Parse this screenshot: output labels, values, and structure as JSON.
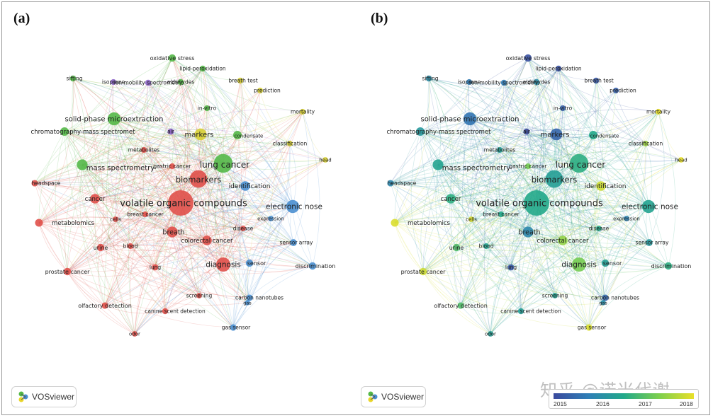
{
  "panel_a_label": "(a)",
  "panel_b_label": "(b)",
  "vosviewer_text": "VOSviewer",
  "watermark": "知乎 @诺米代谢",
  "colorbar": {
    "ticks": [
      "2015",
      "2016",
      "2017",
      "2018"
    ],
    "colors": [
      "#3b4a9e",
      "#2f7fb6",
      "#22a98a",
      "#7ccf4e",
      "#e9e02a"
    ]
  },
  "cluster_colors": {
    "red": "#e0504a",
    "green": "#54b848",
    "blue": "#4a8fd0",
    "yellow": "#d6cf35",
    "purple": "#8c63c8"
  },
  "nodes": [
    {
      "label": "volatile organic compounds",
      "cluster": "red",
      "weight": 10,
      "year": 2016.5
    },
    {
      "label": "lung cancer",
      "cluster": "green",
      "weight": 7,
      "year": 2016.6
    },
    {
      "label": "biomarkers",
      "cluster": "red",
      "weight": 6.5,
      "year": 2016.3
    },
    {
      "label": "diagnosis",
      "cluster": "red",
      "weight": 5,
      "year": 2017.2
    },
    {
      "label": "electronic nose",
      "cluster": "blue",
      "weight": 4.5,
      "year": 2016.4
    },
    {
      "label": "solid-phase microextraction",
      "cluster": "green",
      "weight": 4.5,
      "year": 2015.6
    },
    {
      "label": "markers",
      "cluster": "yellow",
      "weight": 4,
      "year": 2015.4
    },
    {
      "label": "mass spectrometry",
      "cluster": "green",
      "weight": 3.5,
      "year": 2016.4
    },
    {
      "label": "breath",
      "cluster": "red",
      "weight": 3.5,
      "year": 2015.9
    },
    {
      "label": "identification",
      "cluster": "blue",
      "weight": 3,
      "year": 2017.8
    },
    {
      "label": "colorectal cancer",
      "cluster": "red",
      "weight": 3,
      "year": 2017.4
    },
    {
      "label": "cancer",
      "cluster": "red",
      "weight": 3,
      "year": 2016.6
    },
    {
      "label": "chromatography-mass spectromet",
      "cluster": "green",
      "weight": 2.5,
      "year": 2016.2
    },
    {
      "label": "condensate",
      "cluster": "green",
      "weight": 2.5,
      "year": 2016.5
    },
    {
      "label": "metabolomics",
      "cluster": "red",
      "weight": 2.2,
      "year": 2017.9
    },
    {
      "label": "prostate cancer",
      "cluster": "red",
      "weight": 2,
      "year": 2017.8
    },
    {
      "label": "oxidative stress",
      "cluster": "green",
      "weight": 2,
      "year": 2015.1
    },
    {
      "label": "sensor",
      "cluster": "blue",
      "weight": 2,
      "year": 2016.3
    },
    {
      "label": "urine",
      "cluster": "red",
      "weight": 2,
      "year": 2016.9
    },
    {
      "label": "discrimination",
      "cluster": "blue",
      "weight": 2,
      "year": 2016.6
    },
    {
      "label": "sensor array",
      "cluster": "blue",
      "weight": 1.8,
      "year": 2016.2
    },
    {
      "label": "carbon nanotubes",
      "cluster": "blue",
      "weight": 1.6,
      "year": 2015.4
    },
    {
      "label": "gas sensor",
      "cluster": "blue",
      "weight": 1.6,
      "year": 2017.9
    },
    {
      "label": "olfactory detection",
      "cluster": "red",
      "weight": 1.6,
      "year": 2016.9
    },
    {
      "label": "canine scent detection",
      "cluster": "red",
      "weight": 1.4,
      "year": 2016.3
    },
    {
      "label": "headspace",
      "cluster": "red",
      "weight": 1.6,
      "year": 2015.9
    },
    {
      "label": "sifting",
      "cluster": "green",
      "weight": 1.4,
      "year": 2016.0
    },
    {
      "label": "isoprene",
      "cluster": "purple",
      "weight": 1.3,
      "year": 2015.7
    },
    {
      "label": "ion mobility spectrometry",
      "cluster": "purple",
      "weight": 1.4,
      "year": 2015.7
    },
    {
      "label": "aldehydes",
      "cluster": "green",
      "weight": 1.4,
      "year": 2016.0
    },
    {
      "label": "lipid-peroxidation",
      "cluster": "green",
      "weight": 1.4,
      "year": 2015.1
    },
    {
      "label": "breath test",
      "cluster": "yellow",
      "weight": 1.4,
      "year": 2015.2
    },
    {
      "label": "prediction",
      "cluster": "yellow",
      "weight": 1.3,
      "year": 2015.3
    },
    {
      "label": "mortality",
      "cluster": "yellow",
      "weight": 1.3,
      "year": 2018.0
    },
    {
      "label": "classification",
      "cluster": "yellow",
      "weight": 1.3,
      "year": 2017.5
    },
    {
      "label": "head",
      "cluster": "yellow",
      "weight": 1.2,
      "year": 2018.0
    },
    {
      "label": "in-vitro",
      "cluster": "green",
      "weight": 1.3,
      "year": 2015.3
    },
    {
      "label": "air",
      "cluster": "purple",
      "weight": 1.5,
      "year": 2015.0
    },
    {
      "label": "metabolites",
      "cluster": "red",
      "weight": 1.3,
      "year": 2016.3
    },
    {
      "label": "gastric cancer",
      "cluster": "red",
      "weight": 1.3,
      "year": 2017.2
    },
    {
      "label": "breast cancer",
      "cluster": "red",
      "weight": 1.3,
      "year": 2016.5
    },
    {
      "label": "cells",
      "cluster": "red",
      "weight": 1.2,
      "year": 2017.9
    },
    {
      "label": "expression",
      "cluster": "blue",
      "weight": 1.2,
      "year": 2015.8
    },
    {
      "label": "disease",
      "cluster": "red",
      "weight": 1.2,
      "year": 2016.5
    },
    {
      "label": "blood",
      "cluster": "red",
      "weight": 1.3,
      "year": 2016.4
    },
    {
      "label": "lung",
      "cluster": "red",
      "weight": 1.5,
      "year": 2015.2
    },
    {
      "label": "screening",
      "cluster": "red",
      "weight": 1.2,
      "year": 2016.4
    },
    {
      "label": "gas",
      "cluster": "blue",
      "weight": 1.1,
      "year": 2016.0
    },
    {
      "label": "odor",
      "cluster": "red",
      "weight": 1.2,
      "year": 2016.3
    }
  ]
}
